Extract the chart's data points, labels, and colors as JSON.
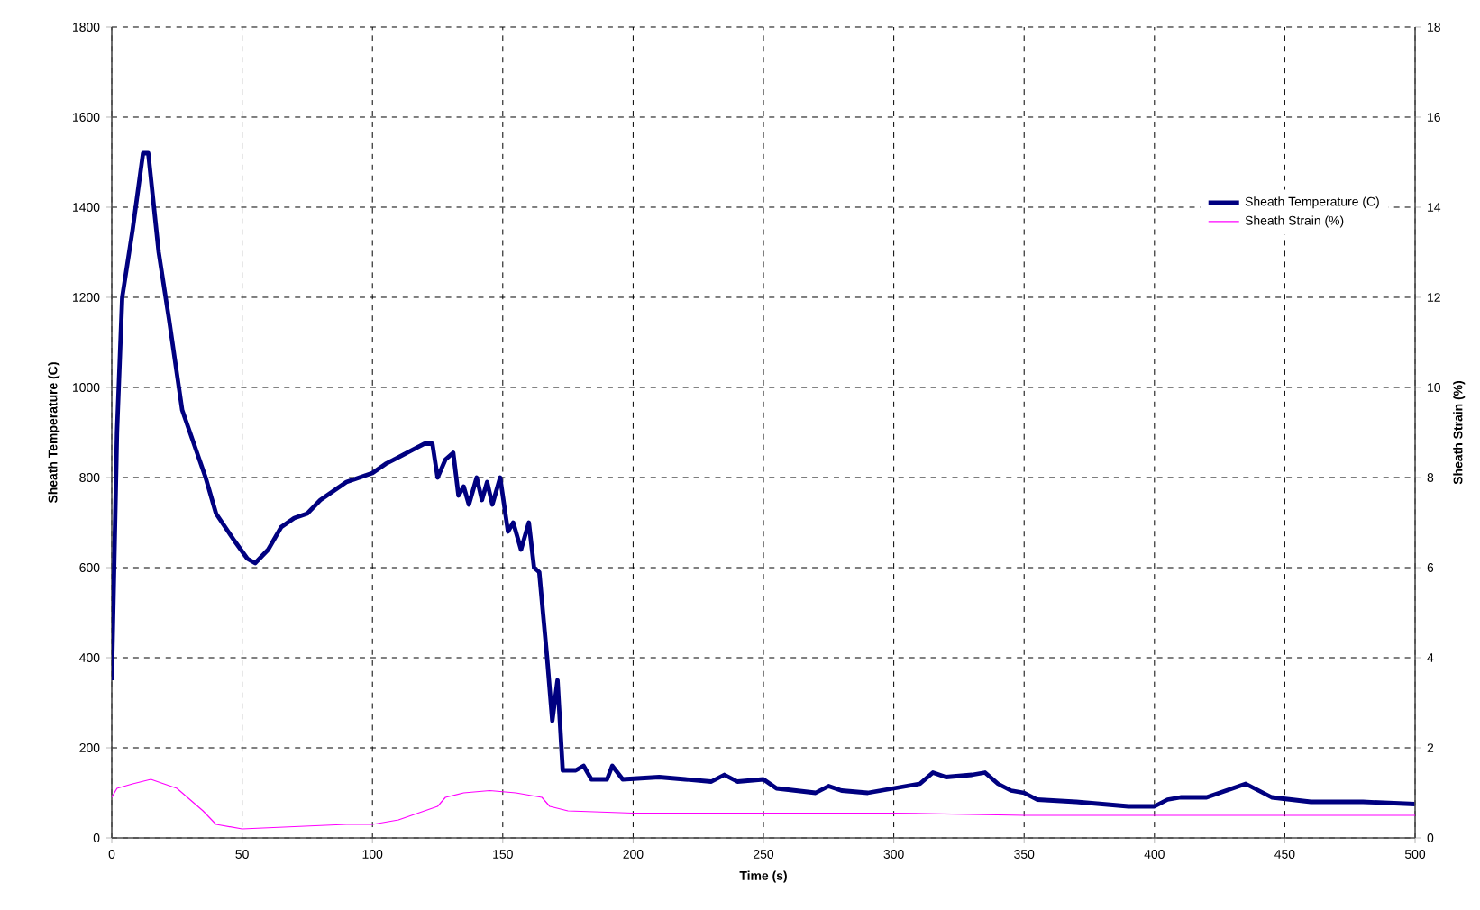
{
  "chart_data": {
    "type": "line",
    "xlabel": "Time (s)",
    "ylabel": "Sheath Temperature (C)",
    "y2label": "Sheath Strain (%)",
    "xlim": [
      0,
      500
    ],
    "xticks": [
      0,
      50,
      100,
      150,
      200,
      250,
      300,
      350,
      400,
      450,
      500
    ],
    "ylim": [
      0,
      1800
    ],
    "yticks": [
      0,
      200,
      400,
      600,
      800,
      1000,
      1200,
      1400,
      1600,
      1800
    ],
    "y2lim": [
      0,
      18
    ],
    "y2ticks": [
      0,
      2,
      4,
      6,
      8,
      10,
      12,
      14,
      16,
      18
    ],
    "grid": true,
    "legend": "top right",
    "marker": "none",
    "line_style": "solid",
    "series": [
      {
        "name": "Sheath Temperature (C)",
        "color": "#000080",
        "axis": "y",
        "x": [
          0,
          2,
          4,
          8,
          12,
          14,
          18,
          22,
          27,
          33,
          36,
          40,
          47,
          52,
          55,
          60,
          65,
          70,
          75,
          80,
          90,
          100,
          105,
          110,
          115,
          120,
          123,
          125,
          128,
          131,
          133,
          135,
          137,
          140,
          142,
          144,
          146,
          149,
          152,
          154,
          157,
          160,
          162,
          164,
          167,
          169,
          171,
          173,
          178,
          181,
          184,
          190,
          192,
          196,
          210,
          220,
          230,
          235,
          240,
          250,
          255,
          270,
          275,
          280,
          290,
          300,
          310,
          315,
          320,
          330,
          335,
          340,
          345,
          350,
          355,
          370,
          390,
          400,
          405,
          410,
          420,
          430,
          435,
          445,
          460,
          480,
          500
        ],
        "values": [
          350,
          900,
          1200,
          1350,
          1520,
          1520,
          1300,
          1150,
          950,
          850,
          800,
          720,
          660,
          620,
          610,
          640,
          690,
          710,
          720,
          750,
          790,
          810,
          830,
          845,
          860,
          875,
          875,
          800,
          840,
          855,
          760,
          780,
          740,
          800,
          750,
          790,
          740,
          800,
          680,
          700,
          640,
          700,
          600,
          590,
          400,
          260,
          350,
          150,
          150,
          160,
          130,
          130,
          160,
          130,
          135,
          130,
          125,
          140,
          125,
          130,
          110,
          100,
          115,
          105,
          100,
          110,
          120,
          145,
          135,
          140,
          145,
          120,
          105,
          100,
          85,
          80,
          70,
          70,
          85,
          90,
          90,
          110,
          120,
          90,
          80,
          80,
          75
        ]
      },
      {
        "name": "Sheath Strain (%)",
        "color": "#ff00ff",
        "axis": "y2",
        "x": [
          0,
          2,
          8,
          15,
          25,
          35,
          40,
          50,
          70,
          90,
          100,
          110,
          120,
          125,
          128,
          135,
          145,
          155,
          165,
          168,
          175,
          200,
          300,
          350,
          500
        ],
        "values": [
          0.9,
          1.1,
          1.2,
          1.3,
          1.1,
          0.6,
          0.3,
          0.2,
          0.25,
          0.3,
          0.3,
          0.4,
          0.6,
          0.7,
          0.9,
          1.0,
          1.05,
          1.0,
          0.9,
          0.7,
          0.6,
          0.55,
          0.55,
          0.5,
          0.5
        ]
      }
    ]
  }
}
